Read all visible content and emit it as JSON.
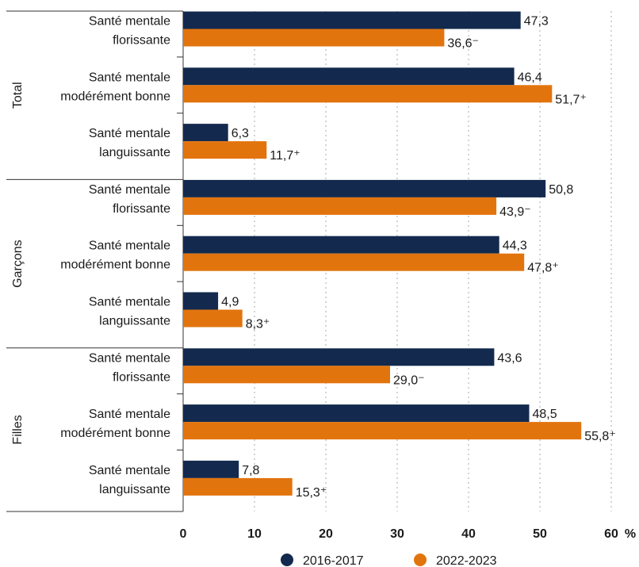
{
  "chart_data": {
    "type": "bar",
    "orientation": "horizontal",
    "unit": "%",
    "xlim": [
      0,
      60
    ],
    "xticks": [
      "0",
      "10",
      "20",
      "30",
      "40",
      "50",
      "60"
    ],
    "grid": true,
    "legend_position": "bottom-center",
    "groups": [
      {
        "name": "Total",
        "categories": [
          {
            "line1": "Santé mentale",
            "line2": "florissante",
            "values": [
              47.3,
              36.6
            ],
            "labels": [
              "47,3",
              "36,6⁻"
            ]
          },
          {
            "line1": "Santé mentale",
            "line2": "modérément bonne",
            "values": [
              46.4,
              51.7
            ],
            "labels": [
              "46,4",
              "51,7⁺"
            ]
          },
          {
            "line1": "Santé mentale",
            "line2": "languissante",
            "values": [
              6.3,
              11.7
            ],
            "labels": [
              "6,3",
              "11,7⁺"
            ]
          }
        ]
      },
      {
        "name": "Garçons",
        "categories": [
          {
            "line1": "Santé mentale",
            "line2": "florissante",
            "values": [
              50.8,
              43.9
            ],
            "labels": [
              "50,8",
              "43,9⁻"
            ]
          },
          {
            "line1": "Santé mentale",
            "line2": "modérément bonne",
            "values": [
              44.3,
              47.8
            ],
            "labels": [
              "44,3",
              "47,8⁺"
            ]
          },
          {
            "line1": "Santé mentale",
            "line2": "languissante",
            "values": [
              4.9,
              8.3
            ],
            "labels": [
              "4,9",
              "8,3⁺"
            ]
          }
        ]
      },
      {
        "name": "Filles",
        "categories": [
          {
            "line1": "Santé mentale",
            "line2": "florissante",
            "values": [
              43.6,
              29.0
            ],
            "labels": [
              "43,6",
              "29,0⁻"
            ]
          },
          {
            "line1": "Santé mentale",
            "line2": "modérément bonne",
            "values": [
              48.5,
              55.8
            ],
            "labels": [
              "48,5",
              "55,8⁺"
            ]
          },
          {
            "line1": "Santé mentale",
            "line2": "languissante",
            "values": [
              7.8,
              15.3
            ],
            "labels": [
              "7,8",
              "15,3⁺"
            ]
          }
        ]
      }
    ],
    "series": [
      {
        "name": "2016-2017",
        "color": "#132a4e"
      },
      {
        "name": "2022-2023",
        "color": "#e2740e"
      }
    ]
  }
}
